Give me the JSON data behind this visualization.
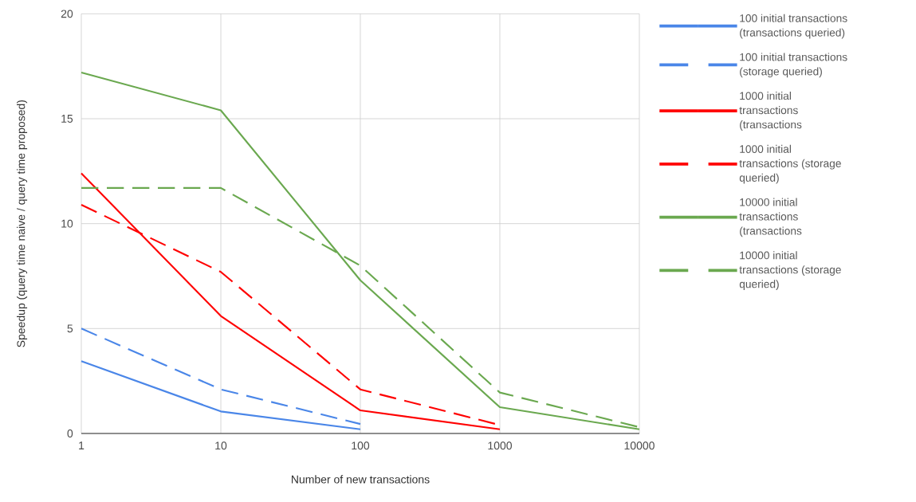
{
  "chart_data": {
    "type": "line",
    "xlabel": "Number of new transactions",
    "ylabel": "Speedup (query time naive / query time proposed)",
    "log": "x",
    "grid": true,
    "legend": "right",
    "marker": "none",
    "xlim": [
      1,
      10000
    ],
    "xticks": [
      1,
      10,
      100,
      1000,
      10000
    ],
    "ylim": [
      0,
      20
    ],
    "yticks": [
      0,
      5,
      10,
      15,
      20
    ],
    "series": [
      {
        "name": "100 initial transactions (transactions queried)",
        "color": "#4a86e8",
        "line_style": "solid",
        "x": [
          1,
          10,
          100
        ],
        "values": [
          3.45,
          1.05,
          0.2
        ]
      },
      {
        "name": "100 initial transactions (storage queried)",
        "color": "#4a86e8",
        "line_style": "dashed",
        "x": [
          1,
          10,
          100
        ],
        "values": [
          5.0,
          2.1,
          0.45
        ]
      },
      {
        "name": "1000 initial transactions (transactions",
        "color": "#ff0000",
        "line_style": "solid",
        "x": [
          1,
          10,
          100,
          1000
        ],
        "values": [
          12.4,
          5.6,
          1.1,
          0.2
        ]
      },
      {
        "name": "1000 initial transactions (storage queried)",
        "color": "#ff0000",
        "line_style": "dashed",
        "x": [
          1,
          10,
          100,
          1000
        ],
        "values": [
          10.9,
          7.7,
          2.1,
          0.4
        ]
      },
      {
        "name": "10000 initial transactions (transactions",
        "color": "#6aa84f",
        "line_style": "solid",
        "x": [
          1,
          10,
          100,
          1000,
          10000
        ],
        "values": [
          17.2,
          15.4,
          7.3,
          1.25,
          0.2
        ]
      },
      {
        "name": "10000 initial transactions (storage queried)",
        "color": "#6aa84f",
        "line_style": "dashed",
        "x": [
          1,
          10,
          100,
          1000,
          10000
        ],
        "values": [
          11.7,
          11.7,
          8.0,
          1.95,
          0.3
        ]
      }
    ]
  }
}
